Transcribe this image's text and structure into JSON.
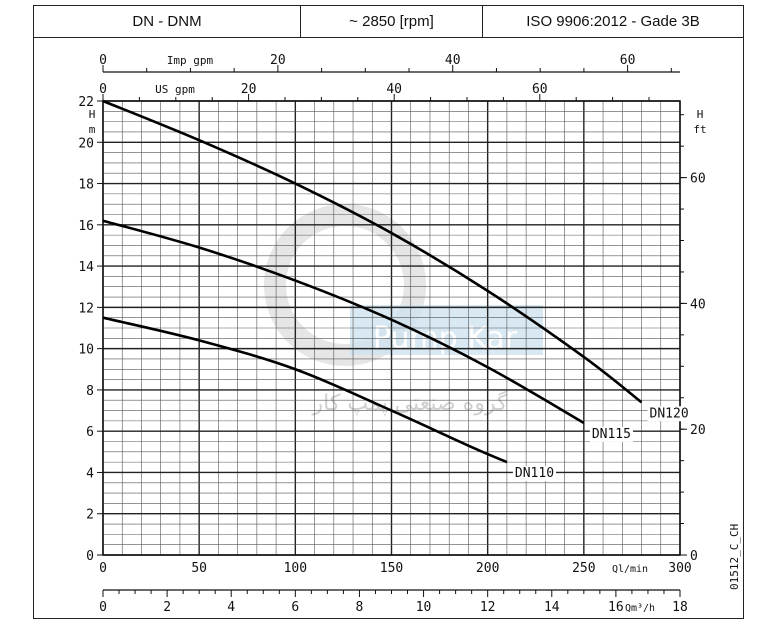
{
  "header": {
    "model": "DN - DNM",
    "speed": "~ 2850 [rpm]",
    "standard": "ISO 9906:2012 - Gade 3B"
  },
  "chart_data": {
    "type": "line",
    "title": "",
    "xlabel": "Ql/min",
    "ylabel": "H m",
    "xlim": [
      0,
      300
    ],
    "ylim": [
      0,
      22
    ],
    "grid": true,
    "x_ticks": [
      0,
      50,
      100,
      150,
      200,
      250,
      300
    ],
    "y_ticks": [
      0,
      2,
      4,
      6,
      8,
      10,
      12,
      14,
      16,
      18,
      20,
      22
    ],
    "secondary_axes": {
      "right": {
        "label": "H ft",
        "ticks": [
          0,
          20,
          40,
          60
        ]
      },
      "bottom": {
        "label": "Qm³/h",
        "ticks": [
          0,
          2,
          4,
          6,
          8,
          10,
          12,
          14,
          16,
          18
        ]
      },
      "top_us": {
        "label": "US gpm",
        "ticks": [
          0,
          20,
          40,
          60
        ]
      },
      "top_imp": {
        "label": "Imp gpm",
        "ticks": [
          0,
          20,
          40,
          60
        ]
      }
    },
    "series": [
      {
        "name": "DN120",
        "x": [
          0,
          50,
          100,
          150,
          200,
          250,
          280
        ],
        "y": [
          22,
          20.1,
          18,
          15.6,
          12.8,
          9.6,
          7.4
        ]
      },
      {
        "name": "DN115",
        "x": [
          0,
          50,
          100,
          150,
          200,
          250
        ],
        "y": [
          16.2,
          14.9,
          13.3,
          11.4,
          9.1,
          6.4
        ]
      },
      {
        "name": "DN110",
        "x": [
          0,
          50,
          100,
          150,
          190,
          210
        ],
        "y": [
          11.5,
          10.4,
          9.0,
          7.0,
          5.3,
          4.5
        ]
      }
    ]
  },
  "code": "01512_C_CH",
  "watermark": {
    "brand": "Pump Kar",
    "subtitle": "گروه صنعتی پمپ کار"
  }
}
